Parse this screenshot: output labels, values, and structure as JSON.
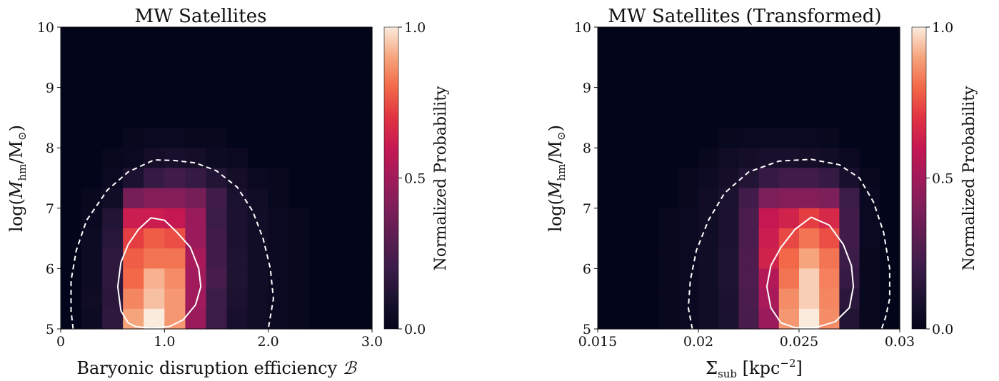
{
  "chart_data": [
    {
      "type": "heatmap",
      "title": "MW Satellites",
      "xlabel": "Baryonic disruption efficiency ℬ",
      "ylabel": "log(M_hm/M_⊙)",
      "xlim": [
        0,
        3.0
      ],
      "ylim": [
        5,
        10
      ],
      "x_ticks": [
        0,
        1.0,
        2.0,
        3.0
      ],
      "x_tick_labels": [
        "0",
        "1.0",
        "2.0",
        "3.0"
      ],
      "y_ticks": [
        5,
        6,
        7,
        8,
        9,
        10
      ],
      "y_tick_labels": [
        "5",
        "6",
        "7",
        "8",
        "9",
        "10"
      ],
      "grid": false,
      "colormap": "rocket",
      "colorbar": {
        "label": "Normalized Probability",
        "range": [
          0,
          1.0
        ],
        "ticks": [
          0.0,
          0.5,
          1.0
        ],
        "tick_labels": [
          "0.0",
          "0.5",
          "1.0"
        ]
      },
      "bin_x_centers": [
        0.1,
        0.3,
        0.5,
        0.7,
        0.9,
        1.1,
        1.3,
        1.5,
        1.7,
        1.9,
        2.1,
        2.3,
        2.5,
        2.7,
        2.9
      ],
      "bin_y_centers": [
        5.167,
        5.5,
        5.833,
        6.167,
        6.5,
        6.833,
        7.167,
        7.5,
        7.833,
        8.167,
        8.5,
        8.833,
        9.167,
        9.5,
        9.833
      ],
      "z_rows_from_top": [
        [
          0,
          0,
          0,
          0,
          0,
          0,
          0,
          0,
          0,
          0,
          0,
          0,
          0,
          0,
          0
        ],
        [
          0,
          0,
          0,
          0,
          0,
          0,
          0,
          0,
          0,
          0,
          0,
          0,
          0,
          0,
          0
        ],
        [
          0,
          0,
          0,
          0,
          0,
          0,
          0,
          0,
          0,
          0,
          0,
          0,
          0,
          0,
          0
        ],
        [
          0,
          0,
          0,
          0,
          0,
          0,
          0,
          0,
          0,
          0,
          0,
          0,
          0,
          0,
          0
        ],
        [
          0,
          0,
          0,
          0,
          0,
          0,
          0,
          0,
          0,
          0,
          0,
          0,
          0,
          0,
          0
        ],
        [
          0,
          0,
          0,
          0.02,
          0.03,
          0.03,
          0.02,
          0.02,
          0,
          0,
          0,
          0,
          0,
          0,
          0
        ],
        [
          0,
          0,
          0.02,
          0.03,
          0.07,
          0.08,
          0.07,
          0.04,
          0.03,
          0,
          0,
          0,
          0,
          0,
          0
        ],
        [
          0,
          0,
          0.03,
          0.1,
          0.18,
          0.22,
          0.18,
          0.12,
          0.07,
          0.03,
          0.02,
          0,
          0,
          0,
          0
        ],
        [
          0,
          0.02,
          0.06,
          0.38,
          0.42,
          0.42,
          0.38,
          0.22,
          0.09,
          0.05,
          0.02,
          0,
          0,
          0,
          0
        ],
        [
          0,
          0.03,
          0.12,
          0.62,
          0.62,
          0.6,
          0.48,
          0.2,
          0.1,
          0.06,
          0.03,
          0.02,
          0,
          0,
          0
        ],
        [
          0,
          0.04,
          0.14,
          0.72,
          0.78,
          0.75,
          0.48,
          0.22,
          0.1,
          0.06,
          0.03,
          0.02,
          0,
          0,
          0
        ],
        [
          0,
          0.04,
          0.16,
          0.78,
          0.82,
          0.82,
          0.52,
          0.22,
          0.11,
          0.06,
          0.03,
          0.02,
          0,
          0,
          0
        ],
        [
          0,
          0.04,
          0.16,
          0.8,
          0.92,
          0.86,
          0.5,
          0.24,
          0.11,
          0.06,
          0.03,
          0.02,
          0,
          0,
          0
        ],
        [
          0,
          0.05,
          0.15,
          0.85,
          0.94,
          0.88,
          0.5,
          0.2,
          0.1,
          0.05,
          0.03,
          0.02,
          0,
          0,
          0
        ],
        [
          0,
          0.04,
          0.16,
          0.9,
          1.0,
          0.88,
          0.48,
          0.2,
          0.08,
          0.05,
          0.03,
          0.02,
          0,
          0,
          0
        ]
      ],
      "contours": [
        {
          "style": "dashed",
          "points": [
            [
              0.12,
              5.0
            ],
            [
              0.1,
              5.3
            ],
            [
              0.1,
              5.8
            ],
            [
              0.15,
              6.3
            ],
            [
              0.25,
              6.8
            ],
            [
              0.45,
              7.3
            ],
            [
              0.65,
              7.6
            ],
            [
              0.9,
              7.8
            ],
            [
              1.1,
              7.79
            ],
            [
              1.3,
              7.75
            ],
            [
              1.5,
              7.62
            ],
            [
              1.7,
              7.35
            ],
            [
              1.85,
              6.95
            ],
            [
              1.95,
              6.5
            ],
            [
              2.02,
              6.0
            ],
            [
              2.05,
              5.5
            ],
            [
              2.02,
              5.2
            ],
            [
              2.0,
              5.0
            ]
          ]
        },
        {
          "style": "solid",
          "points": [
            [
              0.65,
              5.1
            ],
            [
              0.58,
              5.3
            ],
            [
              0.55,
              5.7
            ],
            [
              0.58,
              6.1
            ],
            [
              0.65,
              6.4
            ],
            [
              0.75,
              6.65
            ],
            [
              0.87,
              6.84
            ],
            [
              1.0,
              6.8
            ],
            [
              1.12,
              6.6
            ],
            [
              1.25,
              6.35
            ],
            [
              1.33,
              6.0
            ],
            [
              1.35,
              5.7
            ],
            [
              1.3,
              5.4
            ],
            [
              1.18,
              5.15
            ],
            [
              1.05,
              5.04
            ],
            [
              0.88,
              5.01
            ],
            [
              0.72,
              5.04
            ],
            [
              0.65,
              5.1
            ]
          ]
        }
      ]
    },
    {
      "type": "heatmap",
      "title": "MW Satellites (Transformed)",
      "xlabel": "Σ_sub [kpc^−2]",
      "ylabel": "log(M_hm/M_⊙)",
      "xlim": [
        0.015,
        0.03
      ],
      "ylim": [
        5,
        10
      ],
      "x_ticks": [
        0.015,
        0.02,
        0.025,
        0.03
      ],
      "x_tick_labels": [
        "0.015",
        "0.02",
        "0.025",
        "0.03"
      ],
      "y_ticks": [
        5,
        6,
        7,
        8,
        9,
        10
      ],
      "y_tick_labels": [
        "5",
        "6",
        "7",
        "8",
        "9",
        "10"
      ],
      "grid": false,
      "colormap": "rocket",
      "colorbar": {
        "label": "Normalized Probability",
        "range": [
          0,
          1.0
        ],
        "ticks": [
          0.0,
          0.5,
          1.0
        ],
        "tick_labels": [
          "0.0",
          "0.5",
          "1.0"
        ]
      },
      "bin_x_centers": [
        0.0155,
        0.0165,
        0.0175,
        0.0185,
        0.0195,
        0.0205,
        0.0215,
        0.0225,
        0.0235,
        0.0245,
        0.0255,
        0.0265,
        0.0275,
        0.0285,
        0.0295
      ],
      "bin_y_centers": [
        5.167,
        5.5,
        5.833,
        6.167,
        6.5,
        6.833,
        7.167,
        7.5,
        7.833,
        8.167,
        8.5,
        8.833,
        9.167,
        9.5,
        9.833
      ],
      "z_rows_from_top": [
        [
          0,
          0,
          0,
          0,
          0,
          0,
          0,
          0,
          0,
          0,
          0,
          0,
          0,
          0,
          0
        ],
        [
          0,
          0,
          0,
          0,
          0,
          0,
          0,
          0,
          0,
          0,
          0,
          0,
          0,
          0,
          0
        ],
        [
          0,
          0,
          0,
          0,
          0,
          0,
          0,
          0,
          0,
          0,
          0,
          0,
          0,
          0,
          0
        ],
        [
          0,
          0,
          0,
          0,
          0,
          0,
          0,
          0,
          0,
          0,
          0,
          0,
          0,
          0,
          0
        ],
        [
          0,
          0,
          0,
          0,
          0,
          0,
          0,
          0,
          0,
          0,
          0,
          0,
          0,
          0,
          0
        ],
        [
          0,
          0,
          0,
          0,
          0,
          0,
          0.02,
          0.03,
          0.03,
          0.03,
          0.03,
          0.02,
          0,
          0,
          0
        ],
        [
          0,
          0,
          0,
          0,
          0,
          0.02,
          0.05,
          0.07,
          0.08,
          0.08,
          0.07,
          0.06,
          0.03,
          0,
          0
        ],
        [
          0,
          0,
          0,
          0,
          0.02,
          0.04,
          0.07,
          0.12,
          0.18,
          0.22,
          0.22,
          0.18,
          0.08,
          0.02,
          0
        ],
        [
          0,
          0,
          0,
          0,
          0.02,
          0.05,
          0.09,
          0.22,
          0.4,
          0.42,
          0.42,
          0.4,
          0.2,
          0.03,
          0
        ],
        [
          0,
          0,
          0,
          0.02,
          0.03,
          0.06,
          0.1,
          0.25,
          0.6,
          0.64,
          0.72,
          0.66,
          0.22,
          0.03,
          0
        ],
        [
          0,
          0,
          0,
          0.02,
          0.03,
          0.06,
          0.1,
          0.25,
          0.62,
          0.74,
          0.82,
          0.75,
          0.22,
          0.03,
          0
        ],
        [
          0,
          0,
          0,
          0.02,
          0.03,
          0.06,
          0.11,
          0.26,
          0.64,
          0.8,
          0.9,
          0.82,
          0.2,
          0.02,
          0
        ],
        [
          0,
          0,
          0,
          0.02,
          0.03,
          0.06,
          0.11,
          0.26,
          0.55,
          0.82,
          0.96,
          0.84,
          0.18,
          0.02,
          0
        ],
        [
          0,
          0,
          0,
          0.02,
          0.03,
          0.05,
          0.1,
          0.25,
          0.52,
          0.86,
          0.96,
          0.85,
          0.15,
          0.02,
          0
        ],
        [
          0,
          0,
          0,
          0.02,
          0.03,
          0.05,
          0.09,
          0.24,
          0.48,
          0.88,
          1.0,
          0.86,
          0.12,
          0.02,
          0
        ]
      ],
      "contours": [
        {
          "style": "dashed",
          "points": [
            [
              0.0197,
              5.0
            ],
            [
              0.0195,
              5.35
            ],
            [
              0.0196,
              5.8
            ],
            [
              0.0199,
              6.3
            ],
            [
              0.0205,
              6.8
            ],
            [
              0.0213,
              7.25
            ],
            [
              0.0225,
              7.6
            ],
            [
              0.024,
              7.78
            ],
            [
              0.0256,
              7.81
            ],
            [
              0.027,
              7.72
            ],
            [
              0.028,
              7.5
            ],
            [
              0.0287,
              7.1
            ],
            [
              0.0292,
              6.6
            ],
            [
              0.0295,
              6.0
            ],
            [
              0.0295,
              5.5
            ],
            [
              0.0293,
              5.2
            ],
            [
              0.0291,
              5.0
            ]
          ]
        },
        {
          "style": "solid",
          "points": [
            [
              0.0241,
              5.1
            ],
            [
              0.0236,
              5.35
            ],
            [
              0.0234,
              5.7
            ],
            [
              0.0236,
              6.05
            ],
            [
              0.0241,
              6.35
            ],
            [
              0.0248,
              6.65
            ],
            [
              0.0256,
              6.85
            ],
            [
              0.0265,
              6.72
            ],
            [
              0.0272,
              6.4
            ],
            [
              0.0276,
              6.05
            ],
            [
              0.0277,
              5.7
            ],
            [
              0.0275,
              5.35
            ],
            [
              0.0268,
              5.12
            ],
            [
              0.0258,
              5.02
            ],
            [
              0.0248,
              5.02
            ],
            [
              0.0241,
              5.1
            ]
          ]
        }
      ]
    }
  ]
}
